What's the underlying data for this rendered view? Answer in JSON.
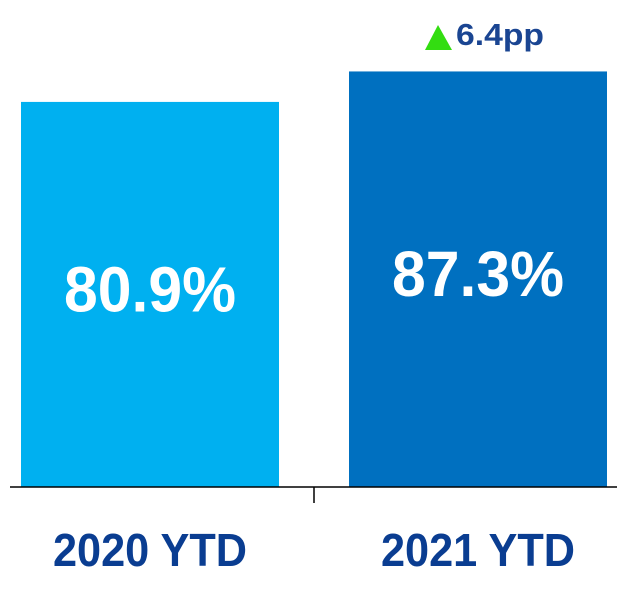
{
  "chart_data": {
    "type": "bar",
    "categories": [
      "2020 YTD",
      "2021 YTD"
    ],
    "values": [
      80.9,
      87.3
    ],
    "value_labels": [
      "80.9%",
      "87.3%"
    ],
    "colors": [
      "#00b0f0",
      "#0070c0"
    ],
    "ylim": [
      0,
      100
    ],
    "annotation": "6.4pp"
  }
}
